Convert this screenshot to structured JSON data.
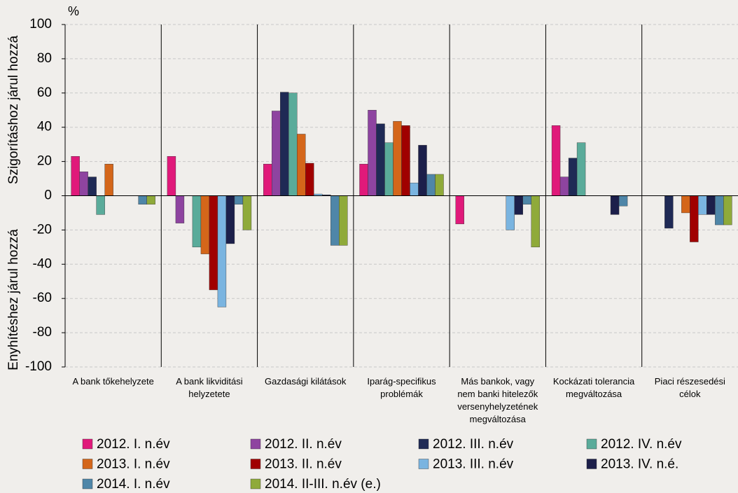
{
  "chart_data": {
    "type": "bar",
    "unit": "%",
    "y_label_upper": "Szigorításhoz járul hozzá",
    "y_label_lower": "Enyhítéshez járul hozzá",
    "categories": [
      "A bank tőkehelyzete",
      "A bank likviditási\nhelyzetete",
      "Gazdasági kilátások",
      "Iparág-specifikus\nproblémák",
      "Más bankok, vagy\nnem banki hitelezők\nversenyhelyzetének\nmegváltozása",
      "Kockázati tolerancia\nmegváltozása",
      "Piaci részesedési\ncélok"
    ],
    "series": [
      {
        "name": "2012. I. n.év",
        "color": "#e0197a",
        "values": [
          23,
          23,
          18.5,
          18.5,
          -16.5,
          41,
          0
        ]
      },
      {
        "name": "2012. II. n.év",
        "color": "#8e44a0",
        "values": [
          14,
          -16,
          49.5,
          50,
          0,
          11,
          0
        ]
      },
      {
        "name": "2012. III. n.év",
        "color": "#1f2a55",
        "values": [
          11,
          0,
          60.5,
          42,
          0,
          22,
          -19
        ]
      },
      {
        "name": "2012. IV. n.év",
        "color": "#5aab9a",
        "values": [
          -11,
          -30,
          60,
          31,
          0,
          31,
          0
        ]
      },
      {
        "name": "2013. I. n.év",
        "color": "#d4661a",
        "values": [
          18.5,
          -34,
          36,
          43.5,
          0,
          0,
          -10
        ]
      },
      {
        "name": "2013. II. n.év",
        "color": "#a00000",
        "values": [
          0,
          -55,
          19,
          41,
          0,
          0,
          -27
        ]
      },
      {
        "name": "2013. III. n.év",
        "color": "#7ab4e0",
        "values": [
          0,
          -65,
          1,
          7.5,
          -20,
          0,
          -11
        ]
      },
      {
        "name": "2013. IV. n.é.",
        "color": "#1c1f4a",
        "values": [
          0,
          -28,
          0.5,
          29.5,
          -11,
          -11,
          -11
        ]
      },
      {
        "name": "2014. I. n.év",
        "color": "#4f86a8",
        "values": [
          -5,
          -5,
          -29,
          12.5,
          -5,
          -6,
          -17
        ]
      },
      {
        "name": "2014. II-III. n.év (e.)",
        "color": "#8faa3a",
        "values": [
          -5,
          -20,
          -29,
          12.5,
          -30,
          0,
          -17
        ]
      }
    ],
    "ylim": [
      -100,
      100
    ],
    "yticks": [
      -100,
      -80,
      -60,
      -40,
      -20,
      0,
      20,
      40,
      60,
      80,
      100
    ],
    "grid": true
  }
}
